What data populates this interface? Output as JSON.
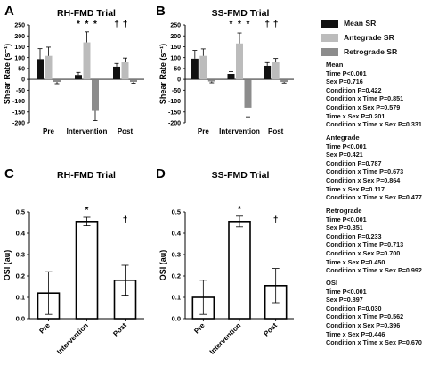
{
  "legend": [
    {
      "label": "Mean SR",
      "color": "#111111"
    },
    {
      "label": "Antegrade SR",
      "color": "#bcbcbc"
    },
    {
      "label": "Retrograde SR",
      "color": "#8c8c8c"
    }
  ],
  "stats": [
    {
      "title": "Mean",
      "lines": [
        "Time P<0.001",
        "Sex P=0.716",
        "Condition P=0.422",
        "Condition x Time P=0.851",
        "Condition x Sex P=0.579",
        "Time x Sex P=0.201",
        "Condition x Time x Sex P=0.331"
      ]
    },
    {
      "title": "Antegrade",
      "lines": [
        "Time P<0.001",
        "Sex P=0.421",
        "Condition P=0.787",
        "Condition x Time P=0.673",
        "Condition x Sex P=0.864",
        "Time x Sex P=0.117",
        "Condition x Time x Sex P=0.477"
      ]
    },
    {
      "title": "Retrograde",
      "lines": [
        "Time P<0.001",
        "Sex P=0.351",
        "Condition P=0.233",
        "Condition x Time P=0.713",
        "Condition x Sex P=0.700",
        "Time x Sex P=0.450",
        "Condition x Time x Sex P=0.992"
      ]
    },
    {
      "title": "OSI",
      "lines": [
        "Time P<0.001",
        "Sex P=0.897",
        "Condition P=0.030",
        "Condition x Time P=0.562",
        "Condition x Sex P=0.396",
        "Time x Sex P=0.446",
        "Condition x Time x Sex P=0.670"
      ]
    }
  ],
  "chart_data": [
    {
      "panel": "A",
      "title": "RH-FMD Trial",
      "type": "bar",
      "ylabel": "Shear Rate (s⁻¹)",
      "ylim": [
        -200,
        250
      ],
      "yticks": [
        -200,
        -150,
        -100,
        -50,
        0,
        50,
        100,
        150,
        200,
        250
      ],
      "categories": [
        "Pre",
        "Intervention",
        "Post"
      ],
      "series": [
        {
          "name": "Mean SR",
          "color": "#111111",
          "values": [
            93,
            20,
            58
          ],
          "errors": [
            48,
            12,
            15
          ]
        },
        {
          "name": "Antegrade SR",
          "color": "#bcbcbc",
          "values": [
            108,
            170,
            78
          ],
          "errors": [
            40,
            48,
            20
          ]
        },
        {
          "name": "Retrograde SR",
          "color": "#8c8c8c",
          "values": [
            -12,
            -145,
            -12
          ],
          "errors": [
            8,
            45,
            6
          ]
        }
      ],
      "annotations": [
        {
          "category": 1,
          "series": [
            0,
            1,
            2
          ],
          "symbol": "*"
        },
        {
          "category": 2,
          "series": [
            0,
            1
          ],
          "symbol": "†"
        }
      ]
    },
    {
      "panel": "B",
      "title": "SS-FMD Trial",
      "type": "bar",
      "ylabel": "Shear Rate (s⁻¹)",
      "ylim": [
        -200,
        250
      ],
      "yticks": [
        -200,
        -150,
        -100,
        -50,
        0,
        50,
        100,
        150,
        200,
        250
      ],
      "categories": [
        "Pre",
        "Intervention",
        "Post"
      ],
      "series": [
        {
          "name": "Mean SR",
          "color": "#111111",
          "values": [
            95,
            25,
            62
          ],
          "errors": [
            38,
            10,
            15
          ]
        },
        {
          "name": "Antegrade SR",
          "color": "#bcbcbc",
          "values": [
            108,
            165,
            78
          ],
          "errors": [
            32,
            48,
            18
          ]
        },
        {
          "name": "Retrograde SR",
          "color": "#8c8c8c",
          "values": [
            -10,
            -130,
            -12
          ],
          "errors": [
            6,
            42,
            5
          ]
        }
      ],
      "annotations": [
        {
          "category": 1,
          "series": [
            0,
            1,
            2
          ],
          "symbol": "*"
        },
        {
          "category": 2,
          "series": [
            0,
            1
          ],
          "symbol": "†"
        }
      ]
    },
    {
      "panel": "C",
      "title": "RH-FMD Trial",
      "type": "bar",
      "ylabel": "OSI (au)",
      "ylim": [
        0,
        0.5
      ],
      "yticks": [
        0.0,
        0.1,
        0.2,
        0.3,
        0.4,
        0.5
      ],
      "categories": [
        "Pre",
        "Intervention",
        "Post"
      ],
      "series": [
        {
          "values": [
            0.12,
            0.455,
            0.18
          ],
          "errors": [
            0.1,
            0.02,
            0.07
          ]
        }
      ],
      "annotations": [
        {
          "category": 1,
          "series": [
            0
          ],
          "symbol": "*"
        },
        {
          "category": 2,
          "series": [
            0
          ],
          "symbol": "†"
        }
      ]
    },
    {
      "panel": "D",
      "title": "SS-FMD Trial",
      "type": "bar",
      "ylabel": "OSI (au)",
      "ylim": [
        0,
        0.5
      ],
      "yticks": [
        0.0,
        0.1,
        0.2,
        0.3,
        0.4,
        0.5
      ],
      "categories": [
        "Pre",
        "Intervention",
        "Post"
      ],
      "series": [
        {
          "values": [
            0.1,
            0.455,
            0.155
          ],
          "errors": [
            0.08,
            0.025,
            0.08
          ]
        }
      ],
      "annotations": [
        {
          "category": 1,
          "series": [
            0
          ],
          "symbol": "*"
        },
        {
          "category": 2,
          "series": [
            0
          ],
          "symbol": "†"
        }
      ]
    }
  ]
}
